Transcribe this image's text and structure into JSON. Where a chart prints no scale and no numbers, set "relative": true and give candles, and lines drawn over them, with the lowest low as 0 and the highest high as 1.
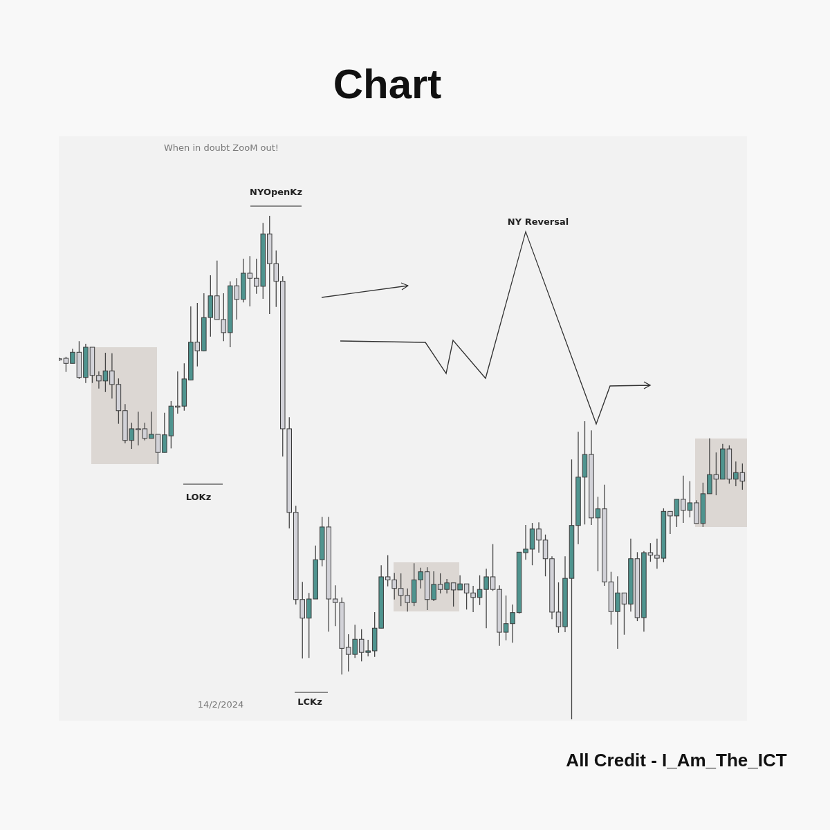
{
  "chart_data": {
    "type": "candlestick",
    "title": "Chart",
    "relative": true,
    "categories": [
      null,
      null,
      null,
      null,
      null,
      null,
      null,
      null,
      null,
      null,
      null,
      null,
      null,
      null,
      null,
      null,
      null,
      null,
      null,
      null,
      null,
      null,
      null,
      null,
      null,
      null,
      null,
      null,
      null,
      null,
      null,
      null,
      null,
      null,
      null,
      null,
      null,
      null,
      null,
      null,
      null,
      null,
      null,
      null,
      null,
      null,
      null,
      null,
      null,
      null,
      null,
      null,
      null,
      null,
      null,
      null,
      null,
      null,
      null,
      null,
      null,
      null,
      null,
      null,
      null,
      null,
      null,
      null,
      null,
      null,
      null,
      null,
      null,
      null,
      null,
      null,
      null,
      null,
      null,
      null,
      null,
      null,
      null,
      null,
      null,
      null,
      null,
      null,
      null,
      null,
      null,
      null,
      null,
      null,
      null,
      null,
      null,
      null,
      null,
      null,
      null,
      null,
      null,
      null,
      null
    ],
    "ohlc": [
      [
        0.716,
        0.718,
        0.712,
        0.716
      ],
      [
        0.717,
        0.72,
        0.69,
        0.707
      ],
      [
        0.707,
        0.736,
        0.707,
        0.729
      ],
      [
        0.729,
        0.751,
        0.676,
        0.679
      ],
      [
        0.679,
        0.746,
        0.668,
        0.739
      ],
      [
        0.739,
        0.739,
        0.668,
        0.683
      ],
      [
        0.683,
        0.691,
        0.657,
        0.672
      ],
      [
        0.672,
        0.728,
        0.65,
        0.692
      ],
      [
        0.692,
        0.727,
        0.637,
        0.665
      ],
      [
        0.665,
        0.677,
        0.587,
        0.613
      ],
      [
        0.613,
        0.626,
        0.548,
        0.554
      ],
      [
        0.554,
        0.589,
        0.537,
        0.577
      ],
      [
        0.577,
        0.611,
        0.544,
        0.577
      ],
      [
        0.577,
        0.589,
        0.554,
        0.558
      ],
      [
        0.558,
        0.611,
        0.558,
        0.566
      ],
      [
        0.566,
        0.566,
        0.507,
        0.53
      ],
      [
        0.53,
        0.609,
        0.53,
        0.565
      ],
      [
        0.563,
        0.632,
        0.538,
        0.622
      ],
      [
        0.622,
        0.691,
        0.607,
        0.622
      ],
      [
        0.622,
        0.707,
        0.613,
        0.676
      ],
      [
        0.674,
        0.82,
        0.673,
        0.749
      ],
      [
        0.749,
        0.827,
        0.701,
        0.732
      ],
      [
        0.732,
        0.846,
        0.731,
        0.798
      ],
      [
        0.798,
        0.882,
        0.76,
        0.841
      ],
      [
        0.841,
        0.911,
        0.794,
        0.794
      ],
      [
        0.794,
        0.846,
        0.751,
        0.768
      ],
      [
        0.768,
        0.87,
        0.739,
        0.861
      ],
      [
        0.861,
        0.876,
        0.794,
        0.834
      ],
      [
        0.834,
        0.915,
        0.828,
        0.886
      ],
      [
        0.886,
        0.92,
        0.82,
        0.876
      ],
      [
        0.876,
        0.915,
        0.845,
        0.86
      ],
      [
        0.86,
        0.986,
        0.835,
        0.964
      ],
      [
        0.964,
        1,
        0.805,
        0.905
      ],
      [
        0.905,
        0.931,
        0.819,
        0.87
      ],
      [
        0.87,
        0.88,
        0.522,
        0.577
      ],
      [
        0.577,
        0.6,
        0.379,
        0.411
      ],
      [
        0.411,
        0.424,
        0.228,
        0.238
      ],
      [
        0.238,
        0.273,
        0.121,
        0.201
      ],
      [
        0.201,
        0.251,
        0.122,
        0.239
      ],
      [
        0.239,
        0.345,
        0.239,
        0.317
      ],
      [
        0.317,
        0.402,
        0.304,
        0.382
      ],
      [
        0.382,
        0.402,
        0.174,
        0.239
      ],
      [
        0.239,
        0.266,
        0.185,
        0.232
      ],
      [
        0.232,
        0.242,
        0.089,
        0.141
      ],
      [
        0.143,
        0.169,
        0.095,
        0.129
      ],
      [
        0.129,
        0.188,
        0.122,
        0.159
      ],
      [
        0.159,
        0.179,
        0.115,
        0.133
      ],
      [
        0.133,
        0.158,
        0.125,
        0.136
      ],
      [
        0.136,
        0.213,
        0.124,
        0.181
      ],
      [
        0.181,
        0.306,
        0.181,
        0.283
      ],
      [
        0.283,
        0.326,
        0.264,
        0.277
      ],
      [
        0.277,
        0.291,
        0.238,
        0.26
      ],
      [
        0.26,
        0.29,
        0.225,
        0.246
      ],
      [
        0.246,
        0.26,
        0.214,
        0.232
      ],
      [
        0.232,
        0.31,
        0.225,
        0.277
      ],
      [
        0.277,
        0.301,
        0.26,
        0.293
      ],
      [
        0.293,
        0.302,
        0.217,
        0.238
      ],
      [
        0.238,
        0.294,
        0.235,
        0.268
      ],
      [
        0.268,
        0.29,
        0.25,
        0.258
      ],
      [
        0.258,
        0.279,
        0.25,
        0.271
      ],
      [
        0.271,
        0.271,
        0.224,
        0.257
      ],
      [
        0.257,
        0.286,
        0.257,
        0.269
      ],
      [
        0.269,
        0.269,
        0.218,
        0.251
      ],
      [
        0.251,
        0.265,
        0.213,
        0.242
      ],
      [
        0.242,
        0.286,
        0.227,
        0.258
      ],
      [
        0.258,
        0.299,
        0.181,
        0.283
      ],
      [
        0.283,
        0.348,
        0.255,
        0.258
      ],
      [
        0.258,
        0.266,
        0.146,
        0.173
      ],
      [
        0.173,
        0.246,
        0.157,
        0.19
      ],
      [
        0.19,
        0.228,
        0.152,
        0.212
      ],
      [
        0.212,
        0.332,
        0.21,
        0.332
      ],
      [
        0.331,
        0.386,
        0.317,
        0.338
      ],
      [
        0.338,
        0.39,
        0.306,
        0.378
      ],
      [
        0.378,
        0.391,
        0.331,
        0.356
      ],
      [
        0.356,
        0.367,
        0.284,
        0.319
      ],
      [
        0.319,
        0.324,
        0.199,
        0.213
      ],
      [
        0.213,
        0.272,
        0.172,
        0.184
      ],
      [
        0.184,
        0.324,
        0.173,
        0.28
      ],
      [
        0.28,
        0.516,
        0,
        0.385
      ],
      [
        0.385,
        0.571,
        0.348,
        0.481
      ],
      [
        0.481,
        0.592,
        0.387,
        0.526
      ],
      [
        0.526,
        0.574,
        0.386,
        0.4
      ],
      [
        0.4,
        0.442,
        0.294,
        0.418
      ],
      [
        0.418,
        0.466,
        0.265,
        0.273
      ],
      [
        0.273,
        0.293,
        0.188,
        0.214
      ],
      [
        0.214,
        0.284,
        0.14,
        0.251
      ],
      [
        0.251,
        0.251,
        0.168,
        0.229
      ],
      [
        0.229,
        0.359,
        0.214,
        0.319
      ],
      [
        0.319,
        0.332,
        0.195,
        0.202
      ],
      [
        0.202,
        0.334,
        0.174,
        0.331
      ],
      [
        0.331,
        0.35,
        0.313,
        0.326
      ],
      [
        0.326,
        0.359,
        0.299,
        0.32
      ],
      [
        0.32,
        0.419,
        0.312,
        0.413
      ],
      [
        0.413,
        0.413,
        0.368,
        0.404
      ],
      [
        0.404,
        0.437,
        0.382,
        0.437
      ],
      [
        0.437,
        0.484,
        0.39,
        0.415
      ],
      [
        0.415,
        0.473,
        0.401,
        0.43
      ],
      [
        0.43,
        0.435,
        0.389,
        0.389
      ],
      [
        0.389,
        0.47,
        0.382,
        0.448
      ],
      [
        0.448,
        0.558,
        0.448,
        0.486
      ],
      [
        0.486,
        0.53,
        0.445,
        0.477
      ],
      [
        0.477,
        0.547,
        0.477,
        0.537
      ],
      [
        0.537,
        0.544,
        0.468,
        0.477
      ],
      [
        0.477,
        0.512,
        0.463,
        0.49
      ],
      [
        0.49,
        0.508,
        0.456,
        0.473
      ]
    ],
    "colors": [
      "#d2d2d8",
      "#d2d2d8",
      "#4f948f",
      "#d2d2d8",
      "#4f948f",
      "#d2d2d8",
      "#d2d2d8",
      "#4f948f",
      "#d2d2d8",
      "#d2d2d8",
      "#d2d2d8",
      "#4f948f",
      "#d2d2d8",
      "#d2d2d8",
      "#4f948f",
      "#d2d2d8",
      "#4f948f",
      "#4f948f",
      "#d2d2d8",
      "#4f948f",
      "#4f948f",
      "#d2d2d8",
      "#4f948f",
      "#4f948f",
      "#d2d2d8",
      "#d2d2d8",
      "#4f948f",
      "#d2d2d8",
      "#4f948f",
      "#d2d2d8",
      "#d2d2d8",
      "#4f948f",
      "#d2d2d8",
      "#d2d2d8",
      "#d2d2d8",
      "#d2d2d8",
      "#d2d2d8",
      "#d2d2d8",
      "#4f948f",
      "#4f948f",
      "#4f948f",
      "#d2d2d8",
      "#d2d2d8",
      "#d2d2d8",
      "#d2d2d8",
      "#4f948f",
      "#d2d2d8",
      "#4f948f",
      "#4f948f",
      "#4f948f",
      "#d2d2d8",
      "#d2d2d8",
      "#d2d2d8",
      "#d2d2d8",
      "#4f948f",
      "#4f948f",
      "#d2d2d8",
      "#4f948f",
      "#d2d2d8",
      "#4f948f",
      "#d2d2d8",
      "#4f948f",
      "#d2d2d8",
      "#d2d2d8",
      "#4f948f",
      "#4f948f",
      "#d2d2d8",
      "#d2d2d8",
      "#4f948f",
      "#4f948f",
      "#4f948f",
      "#4f948f",
      "#4f948f",
      "#d2d2d8",
      "#d2d2d8",
      "#d2d2d8",
      "#d2d2d8",
      "#4f948f",
      "#4f948f",
      "#4f948f",
      "#4f948f",
      "#d2d2d8",
      "#4f948f",
      "#d2d2d8",
      "#d2d2d8",
      "#4f948f",
      "#d2d2d8",
      "#4f948f",
      "#d2d2d8",
      "#4f948f",
      "#d2d2d8",
      "#d2d2d8",
      "#4f948f",
      "#d2d2d8",
      "#4f948f",
      "#d2d2d8",
      "#4f948f",
      "#d2d2d8",
      "#4f948f",
      "#4f948f",
      "#d2d2d8",
      "#4f948f",
      "#d2d2d8",
      "#4f948f",
      "#d2d2d8"
    ],
    "annotations": [
      "When in doubt ZooM out!",
      "NYOpenKz",
      "LOKz",
      "LCKz",
      "NY Reversal",
      "14/2/2024",
      "All Credit - I_Am_The_ICT"
    ]
  }
}
